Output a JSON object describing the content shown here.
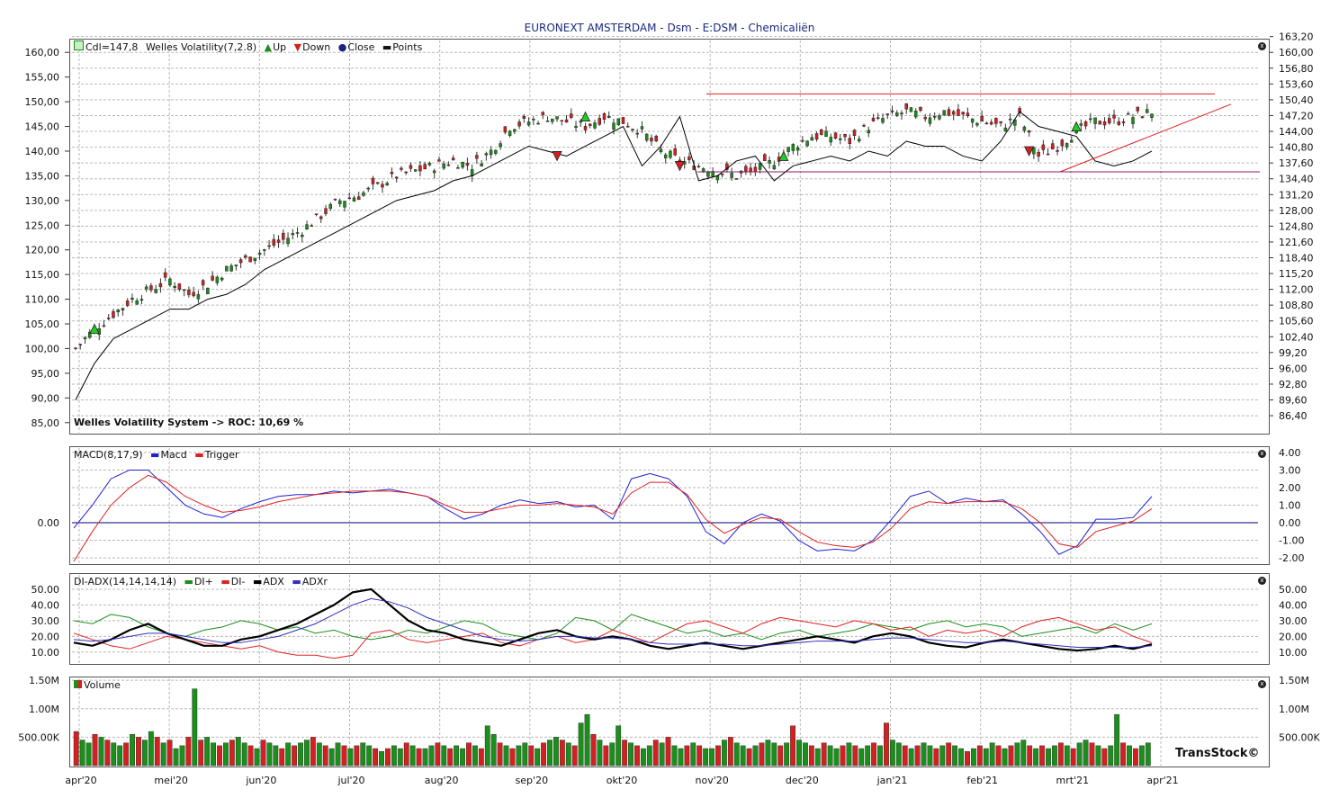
{
  "title": "EURONEXT AMSTERDAM - Dsm - E:DSM - Chemicaliën",
  "brand": "TransStock©",
  "close_glyph": "x",
  "colors": {
    "up": "#1a8f1a",
    "down": "#d42020",
    "price_line": "#000000",
    "grid": "#b8b8b8",
    "trend": "#e02020",
    "support": "#8b1a6b"
  },
  "price_panel": {
    "legend": {
      "cdl": "Cdl=147,8",
      "indicator": "Welles Volatility(7,2.8)",
      "up": "Up",
      "down": "Down",
      "close": "Close",
      "points": "Points"
    },
    "roc_text": "Welles Volatility System -> ROC: 10,69 %"
  },
  "macd_panel": {
    "legend": {
      "name": "MACD(8,17,9)",
      "macd": "Macd",
      "trigger": "Trigger"
    }
  },
  "adx_panel": {
    "legend": {
      "name": "DI-ADX(14,14,14,14)",
      "diplus": "DI+",
      "diminus": "DI-",
      "adx": "ADX",
      "adxr": "ADXr"
    }
  },
  "volume_panel": {
    "legend": {
      "name": "Volume"
    }
  },
  "chart_data": [
    {
      "type": "candlestick",
      "panel": "price",
      "left_ticks": [
        "160,00",
        "155,00",
        "150,00",
        "145,00",
        "140,00",
        "135,00",
        "130,00",
        "125,00",
        "120,00",
        "115,00",
        "110,00",
        "105,00",
        "100,00",
        "95,00",
        "90,00",
        "85,00"
      ],
      "right_ticks": [
        "163,20",
        "160,00",
        "156,80",
        "153,60",
        "150,40",
        "147,20",
        "144,00",
        "140,80",
        "137,60",
        "134,40",
        "131,20",
        "128,00",
        "124,80",
        "121,60",
        "118,40",
        "115,20",
        "112,00",
        "108,80",
        "105,60",
        "102,40",
        "99,20",
        "96,00",
        "92,80",
        "89,60",
        "86,40"
      ],
      "ylim": [
        83.5,
        161.5
      ],
      "x_labels": [
        "apr'20",
        "mei'20",
        "jun'20",
        "jul'20",
        "aug'20",
        "sep'20",
        "okt'20",
        "nov'20",
        "dec'20",
        "jan'21",
        "feb'21",
        "mrt'21",
        "apr'21"
      ],
      "close_points": [
        [
          0,
          100
        ],
        [
          4,
          104
        ],
        [
          8,
          107
        ],
        [
          12,
          110
        ],
        [
          16,
          112
        ],
        [
          20,
          114
        ],
        [
          24,
          111
        ],
        [
          28,
          113
        ],
        [
          32,
          116
        ],
        [
          36,
          118
        ],
        [
          40,
          120
        ],
        [
          44,
          122
        ],
        [
          48,
          124
        ],
        [
          52,
          127
        ],
        [
          56,
          130
        ],
        [
          60,
          131
        ],
        [
          64,
          133
        ],
        [
          68,
          135
        ],
        [
          72,
          136
        ],
        [
          76,
          137
        ],
        [
          80,
          138
        ],
        [
          84,
          137
        ],
        [
          88,
          140
        ],
        [
          92,
          145
        ],
        [
          96,
          146
        ],
        [
          100,
          147
        ],
        [
          104,
          146
        ],
        [
          108,
          145
        ],
        [
          112,
          147
        ],
        [
          116,
          146
        ],
        [
          120,
          144
        ],
        [
          124,
          140
        ],
        [
          128,
          138
        ],
        [
          132,
          137
        ],
        [
          136,
          136
        ],
        [
          140,
          135
        ],
        [
          144,
          136
        ],
        [
          148,
          138
        ],
        [
          152,
          141
        ],
        [
          156,
          143
        ],
        [
          160,
          143
        ],
        [
          164,
          142
        ],
        [
          168,
          145
        ],
        [
          172,
          147
        ],
        [
          176,
          148
        ],
        [
          180,
          147
        ],
        [
          184,
          148
        ],
        [
          188,
          147
        ],
        [
          192,
          146
        ],
        [
          196,
          145
        ],
        [
          200,
          147
        ],
        [
          204,
          139
        ],
        [
          208,
          141
        ],
        [
          212,
          144
        ],
        [
          216,
          146
        ],
        [
          220,
          146
        ],
        [
          224,
          147
        ],
        [
          228,
          148
        ]
      ],
      "welles_points": [
        [
          0,
          89.6
        ],
        [
          4,
          97
        ],
        [
          8,
          102
        ],
        [
          12,
          104
        ],
        [
          16,
          106
        ],
        [
          20,
          108
        ],
        [
          24,
          108
        ],
        [
          28,
          110
        ],
        [
          32,
          111
        ],
        [
          36,
          113
        ],
        [
          40,
          116
        ],
        [
          44,
          118
        ],
        [
          48,
          120
        ],
        [
          52,
          122
        ],
        [
          56,
          124
        ],
        [
          60,
          126
        ],
        [
          64,
          128
        ],
        [
          68,
          130
        ],
        [
          72,
          131
        ],
        [
          76,
          132
        ],
        [
          80,
          134
        ],
        [
          84,
          135
        ],
        [
          88,
          137
        ],
        [
          92,
          139
        ],
        [
          96,
          141
        ],
        [
          100,
          140
        ],
        [
          104,
          139
        ],
        [
          108,
          141
        ],
        [
          112,
          143
        ],
        [
          116,
          145
        ],
        [
          120,
          137
        ],
        [
          124,
          141
        ],
        [
          128,
          147
        ],
        [
          132,
          134
        ],
        [
          136,
          135
        ],
        [
          140,
          138
        ],
        [
          144,
          139
        ],
        [
          148,
          134
        ],
        [
          152,
          137
        ],
        [
          156,
          138
        ],
        [
          160,
          139
        ],
        [
          164,
          138
        ],
        [
          168,
          140
        ],
        [
          172,
          139
        ],
        [
          176,
          142
        ],
        [
          180,
          141
        ],
        [
          184,
          141
        ],
        [
          188,
          139
        ],
        [
          192,
          138
        ],
        [
          196,
          142
        ],
        [
          200,
          148
        ],
        [
          204,
          145
        ],
        [
          208,
          144
        ],
        [
          212,
          143
        ],
        [
          216,
          138
        ],
        [
          220,
          137
        ],
        [
          224,
          138
        ],
        [
          228,
          140
        ]
      ],
      "signals": [
        {
          "type": "up",
          "x": 4,
          "y": 104
        },
        {
          "type": "down",
          "x": 102,
          "y": 139
        },
        {
          "type": "up",
          "x": 108,
          "y": 147
        },
        {
          "type": "down",
          "x": 128,
          "y": 137
        },
        {
          "type": "up",
          "x": 150,
          "y": 139
        },
        {
          "type": "down",
          "x": 202,
          "y": 140
        },
        {
          "type": "up",
          "x": 212,
          "y": 145
        }
      ]
    },
    {
      "type": "line",
      "panel": "macd",
      "left_ticks": [
        "0.00"
      ],
      "right_ticks": [
        "4.00",
        "3.00",
        "2.00",
        "1.00",
        "0.00",
        "-1.00",
        "-2.00"
      ],
      "ylim": [
        -2.3,
        4.2
      ],
      "series": [
        {
          "name": "Macd",
          "color": "#2020d0",
          "values": [
            -0.3,
            1,
            2.5,
            3,
            3,
            2,
            1,
            0.5,
            0.3,
            0.8,
            1.2,
            1.5,
            1.6,
            1.6,
            1.8,
            1.7,
            1.8,
            1.9,
            1.7,
            1.5,
            0.8,
            0.2,
            0.5,
            1,
            1.3,
            1.1,
            1.2,
            0.9,
            1.0,
            0.2,
            2.5,
            2.8,
            2.5,
            1.5,
            -0.5,
            -1.2,
            0,
            0.5,
            0.1,
            -1.0,
            -1.6,
            -1.5,
            -1.6,
            -1,
            0.2,
            1.5,
            1.8,
            1.1,
            1.4,
            1.2,
            1.3,
            0.5,
            -0.5,
            -1.8,
            -1.3,
            0.2,
            0.2,
            0.3,
            1.5
          ]
        },
        {
          "name": "Trigger",
          "color": "#e02020",
          "values": [
            -2.2,
            -0.5,
            1,
            2,
            2.7,
            2.3,
            1.5,
            1,
            0.6,
            0.7,
            0.9,
            1.2,
            1.4,
            1.6,
            1.7,
            1.8,
            1.8,
            1.8,
            1.7,
            1.5,
            1.0,
            0.6,
            0.6,
            0.8,
            1.0,
            1.0,
            1.1,
            1.0,
            0.9,
            0.5,
            1.7,
            2.3,
            2.3,
            1.6,
            0.2,
            -0.6,
            -0.1,
            0.3,
            0.2,
            -0.5,
            -1.1,
            -1.3,
            -1.4,
            -1.1,
            -0.3,
            0.8,
            1.2,
            1.1,
            1.2,
            1.2,
            1.2,
            0.8,
            0,
            -1.2,
            -1.4,
            -0.5,
            -0.2,
            0.1,
            0.8
          ]
        }
      ]
    },
    {
      "type": "line",
      "panel": "adx",
      "right_ticks": [
        "50.00",
        "40.00",
        "30.00",
        "20.00",
        "10.00"
      ],
      "left_ticks": [
        "50.00",
        "40.00",
        "30.00",
        "20.00",
        "10.00"
      ],
      "ylim": [
        3,
        58
      ],
      "series": [
        {
          "name": "DI+",
          "color": "#1a8f1a",
          "values": [
            30,
            28,
            34,
            32,
            26,
            22,
            20,
            24,
            26,
            30,
            28,
            24,
            26,
            22,
            24,
            20,
            18,
            20,
            24,
            22,
            26,
            30,
            28,
            22,
            20,
            18,
            22,
            32,
            30,
            24,
            34,
            30,
            26,
            22,
            24,
            20,
            22,
            18,
            22,
            24,
            20,
            22,
            24,
            28,
            26,
            24,
            28,
            30,
            26,
            28,
            26,
            20,
            22,
            24,
            26,
            22,
            28,
            24,
            28
          ]
        },
        {
          "name": "DI-",
          "color": "#e02020",
          "values": [
            22,
            18,
            14,
            12,
            16,
            20,
            18,
            16,
            14,
            12,
            14,
            10,
            8,
            8,
            6,
            8,
            22,
            24,
            18,
            16,
            18,
            20,
            22,
            16,
            14,
            18,
            20,
            16,
            18,
            24,
            20,
            16,
            22,
            28,
            30,
            26,
            22,
            28,
            32,
            30,
            28,
            26,
            30,
            28,
            24,
            26,
            20,
            24,
            22,
            24,
            20,
            26,
            30,
            32,
            28,
            24,
            26,
            20,
            16
          ]
        },
        {
          "name": "ADX",
          "color": "#000000",
          "values": [
            16,
            14,
            18,
            24,
            28,
            22,
            18,
            14,
            14,
            18,
            20,
            24,
            28,
            34,
            40,
            48,
            50,
            40,
            30,
            24,
            22,
            18,
            16,
            14,
            18,
            22,
            24,
            20,
            18,
            20,
            18,
            14,
            12,
            14,
            16,
            14,
            12,
            14,
            16,
            18,
            20,
            18,
            16,
            20,
            22,
            20,
            16,
            14,
            13,
            16,
            18,
            16,
            14,
            12,
            11,
            12,
            14,
            12,
            15
          ]
        },
        {
          "name": "ADXr",
          "color": "#3030c0",
          "values": [
            18,
            17,
            18,
            20,
            22,
            22,
            20,
            18,
            16,
            16,
            18,
            20,
            24,
            28,
            34,
            40,
            44,
            42,
            38,
            32,
            28,
            24,
            20,
            18,
            17,
            18,
            20,
            20,
            19,
            19,
            18,
            16,
            15,
            15,
            15,
            15,
            14,
            14,
            15,
            16,
            17,
            17,
            17,
            18,
            19,
            19,
            18,
            17,
            16,
            16,
            17,
            16,
            15,
            14,
            13,
            13,
            13,
            13,
            14
          ]
        }
      ]
    },
    {
      "type": "bar",
      "panel": "volume",
      "right_ticks": [
        "1.50M",
        "1.00M",
        "500.00K"
      ],
      "left_ticks": [
        "1.50M",
        "1.00M",
        "500.00K"
      ],
      "ylim": [
        0,
        1.55
      ],
      "note_values_in_millions": true,
      "values": [
        0.6,
        0.45,
        0.4,
        0.55,
        0.5,
        0.45,
        0.4,
        0.35,
        0.4,
        0.55,
        0.5,
        0.45,
        0.6,
        0.5,
        0.4,
        0.45,
        0.3,
        0.35,
        0.5,
        1.35,
        0.45,
        0.5,
        0.4,
        0.35,
        0.4,
        0.45,
        0.5,
        0.4,
        0.35,
        0.3,
        0.45,
        0.4,
        0.35,
        0.3,
        0.4,
        0.35,
        0.4,
        0.45,
        0.5,
        0.4,
        0.35,
        0.3,
        0.4,
        0.35,
        0.3,
        0.35,
        0.4,
        0.35,
        0.3,
        0.25,
        0.3,
        0.35,
        0.3,
        0.4,
        0.35,
        0.3,
        0.3,
        0.35,
        0.4,
        0.35,
        0.3,
        0.35,
        0.3,
        0.4,
        0.35,
        0.3,
        0.7,
        0.55,
        0.4,
        0.35,
        0.3,
        0.35,
        0.4,
        0.35,
        0.3,
        0.4,
        0.45,
        0.5,
        0.45,
        0.4,
        0.35,
        0.75,
        0.9,
        0.55,
        0.45,
        0.35,
        0.4,
        0.7,
        0.45,
        0.4,
        0.35,
        0.3,
        0.35,
        0.45,
        0.4,
        0.5,
        0.35,
        0.3,
        0.35,
        0.4,
        0.35,
        0.3,
        0.3,
        0.35,
        0.45,
        0.5,
        0.4,
        0.35,
        0.3,
        0.35,
        0.4,
        0.45,
        0.4,
        0.35,
        0.4,
        0.7,
        0.45,
        0.4,
        0.35,
        0.3,
        0.4,
        0.35,
        0.3,
        0.35,
        0.4,
        0.35,
        0.3,
        0.35,
        0.4,
        0.35,
        0.75,
        0.45,
        0.4,
        0.35,
        0.3,
        0.35,
        0.4,
        0.35,
        0.3,
        0.35,
        0.4,
        0.35,
        0.3,
        0.25,
        0.3,
        0.35,
        0.3,
        0.4,
        0.35,
        0.3,
        0.35,
        0.4,
        0.45,
        0.35,
        0.3,
        0.35,
        0.3,
        0.35,
        0.4,
        0.35,
        0.3,
        0.4,
        0.45,
        0.4,
        0.35,
        0.3,
        0.35,
        0.9,
        0.4,
        0.35,
        0.3,
        0.35,
        0.4
      ]
    }
  ]
}
